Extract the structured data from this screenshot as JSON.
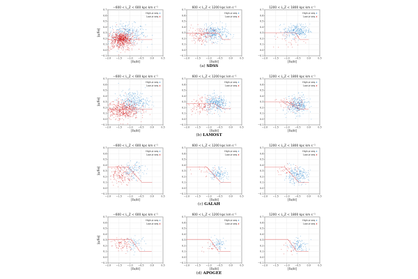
{
  "chart_data": [
    {
      "type": "scatter",
      "subfigure": "(a)",
      "survey": "SDSS",
      "xlabel": "[Fe/H]",
      "ylabel": "[α/Fe]",
      "xlim": [
        -2.0,
        0.5
      ],
      "ylim": [
        -0.1,
        0.7
      ],
      "xticks": [
        "−2.0",
        "−1.5",
        "−1.0",
        "−0.5",
        "0.0",
        "0.5"
      ],
      "yticks": [
        "−0.1",
        "0.0",
        "0.1",
        "0.2",
        "0.3",
        "0.4",
        "0.5",
        "0.6",
        "0.7"
      ],
      "grid": true,
      "legend": "top-right",
      "series_labels": [
        "High-α seq.",
        "Low-α seq."
      ],
      "colors": {
        "high": "#3a8fd1",
        "low": "#d62020",
        "line": "#d62020"
      },
      "panels": [
        {
          "title": "−600 < L_Z < 600 kpc km s⁻¹",
          "clusters": [
            {
              "series": "high",
              "n": 330,
              "cx": -1.15,
              "cy": 0.28,
              "sx": 0.42,
              "sy": 0.09
            },
            {
              "series": "low",
              "n": 460,
              "cx": -1.45,
              "cy": 0.16,
              "sx": 0.36,
              "sy": 0.085
            },
            {
              "series": "low",
              "n": 260,
              "cx": -1.35,
              "cy": 0.2,
              "sx": 0.14,
              "sy": 0.04
            }
          ],
          "boundary": [
            [
              -2.0,
              0.18
            ],
            [
              0.0,
              0.18
            ]
          ]
        },
        {
          "title": "600 < L_Z < 1200 kpc km s⁻¹",
          "clusters": [
            {
              "series": "high",
              "n": 320,
              "cx": -0.75,
              "cy": 0.29,
              "sx": 0.32,
              "sy": 0.07
            },
            {
              "series": "low",
              "n": 130,
              "cx": -1.35,
              "cy": 0.26,
              "sx": 0.3,
              "sy": 0.07
            }
          ],
          "boundary": [
            [
              -2.0,
              0.29
            ],
            [
              -0.55,
              0.29
            ],
            [
              -0.35,
              0.18
            ],
            [
              0.0,
              0.18
            ]
          ]
        },
        {
          "title": "1200 < L_Z < 1800 kpc km s⁻¹",
          "clusters": [
            {
              "series": "high",
              "n": 280,
              "cx": -0.55,
              "cy": 0.33,
              "sx": 0.3,
              "sy": 0.06
            },
            {
              "series": "low",
              "n": 35,
              "cx": -0.85,
              "cy": 0.18,
              "sx": 0.4,
              "sy": 0.08
            }
          ],
          "boundary": [
            [
              -2.0,
              0.3
            ],
            [
              -0.6,
              0.3
            ],
            [
              -0.4,
              0.18
            ],
            [
              0.0,
              0.18
            ]
          ]
        }
      ]
    },
    {
      "type": "scatter",
      "subfigure": "(b)",
      "survey": "LAMOST",
      "xlabel": "[Fe/H]",
      "ylabel": "[α/Fe]",
      "xlim": [
        -2.0,
        0.5
      ],
      "ylim": [
        -0.1,
        0.7
      ],
      "xticks": [
        "−2.0",
        "−1.5",
        "−1.0",
        "−0.5",
        "0.0",
        "0.5"
      ],
      "yticks": [
        "−0.1",
        "0.0",
        "0.1",
        "0.2",
        "0.3",
        "0.4",
        "0.5",
        "0.6",
        "0.7"
      ],
      "grid": true,
      "legend": "top-right",
      "series_labels": [
        "High-α seq.",
        "Low-α seq."
      ],
      "colors": {
        "high": "#3a8fd1",
        "low": "#d62020",
        "line": "#d62020"
      },
      "panels": [
        {
          "title": "−600 < L_Z < 600 kpc km s⁻¹",
          "clusters": [
            {
              "series": "high",
              "n": 320,
              "cx": -0.85,
              "cy": 0.3,
              "sx": 0.34,
              "sy": 0.09
            },
            {
              "series": "low",
              "n": 520,
              "cx": -1.35,
              "cy": 0.16,
              "sx": 0.38,
              "sy": 0.08
            }
          ],
          "boundary": [
            [
              -2.0,
              0.17
            ],
            [
              0.0,
              0.17
            ]
          ]
        },
        {
          "title": "600 < L_Z < 1200 kpc km s⁻¹",
          "clusters": [
            {
              "series": "high",
              "n": 320,
              "cx": -0.65,
              "cy": 0.27,
              "sx": 0.26,
              "sy": 0.07
            },
            {
              "series": "low",
              "n": 120,
              "cx": -1.3,
              "cy": 0.24,
              "sx": 0.32,
              "sy": 0.07
            }
          ],
          "boundary": [
            [
              -2.0,
              0.27
            ],
            [
              -0.75,
              0.27
            ],
            [
              -0.35,
              0.18
            ],
            [
              0.0,
              0.18
            ]
          ]
        },
        {
          "title": "1200 < L_Z < 1800 kpc km s⁻¹",
          "clusters": [
            {
              "series": "high",
              "n": 330,
              "cx": -0.5,
              "cy": 0.24,
              "sx": 0.24,
              "sy": 0.08
            },
            {
              "series": "low",
              "n": 80,
              "cx": -0.85,
              "cy": 0.26,
              "sx": 0.3,
              "sy": 0.06
            }
          ],
          "boundary": [
            [
              -2.0,
              0.3
            ],
            [
              -1.0,
              0.3
            ],
            [
              -0.4,
              0.17
            ],
            [
              0.0,
              0.17
            ]
          ]
        }
      ]
    },
    {
      "type": "scatter",
      "subfigure": "(c)",
      "survey": "GALAH",
      "xlabel": "[Fe/H]",
      "ylabel": "[α/Fe]",
      "xlim": [
        -2.0,
        0.5
      ],
      "ylim": [
        -0.1,
        0.7
      ],
      "xticks": [
        "−2.0",
        "−1.5",
        "−1.0",
        "−0.5",
        "0.0",
        "0.5"
      ],
      "yticks": [
        "−0.1",
        "0.0",
        "0.1",
        "0.2",
        "0.3",
        "0.4",
        "0.5",
        "0.6",
        "0.7"
      ],
      "grid": true,
      "legend": "top-right",
      "series_labels": [
        "High-α seq.",
        "Low-α seq."
      ],
      "colors": {
        "high": "#3a8fd1",
        "low": "#d62020",
        "line": "#d62020"
      },
      "panels": [
        {
          "title": "−600 < L_Z < 600 kpc km s⁻¹",
          "clusters": [
            {
              "series": "high",
              "n": 120,
              "cx": -0.85,
              "cy": 0.3,
              "sx": 0.25,
              "sy": 0.07
            },
            {
              "series": "low",
              "n": 170,
              "cx": -1.35,
              "cy": 0.24,
              "sx": 0.3,
              "sy": 0.08
            }
          ],
          "boundary": [
            [
              -2.0,
              0.37
            ],
            [
              -1.1,
              0.37
            ],
            [
              -0.45,
              0.1
            ],
            [
              0.0,
              0.1
            ]
          ]
        },
        {
          "title": "600 < L_Z < 1200 kpc km s⁻¹",
          "clusters": [
            {
              "series": "high",
              "n": 130,
              "cx": -0.55,
              "cy": 0.25,
              "sx": 0.2,
              "sy": 0.06
            },
            {
              "series": "low",
              "n": 25,
              "cx": -1.1,
              "cy": 0.3,
              "sx": 0.3,
              "sy": 0.06
            }
          ],
          "boundary": [
            [
              -2.0,
              0.37
            ],
            [
              -1.1,
              0.37
            ],
            [
              -0.45,
              0.1
            ],
            [
              0.0,
              0.1
            ]
          ]
        },
        {
          "title": "1200 < L_Z < 1800 kpc km s⁻¹",
          "clusters": [
            {
              "series": "high",
              "n": 230,
              "cx": -0.55,
              "cy": 0.22,
              "sx": 0.26,
              "sy": 0.07
            },
            {
              "series": "low",
              "n": 35,
              "cx": -1.0,
              "cy": 0.3,
              "sx": 0.3,
              "sy": 0.06
            }
          ],
          "boundary": [
            [
              -2.0,
              0.37
            ],
            [
              -1.1,
              0.37
            ],
            [
              -0.45,
              0.1
            ],
            [
              0.0,
              0.1
            ]
          ]
        }
      ]
    },
    {
      "type": "scatter",
      "subfigure": "(d)",
      "survey": "APOGEE",
      "xlabel": "[Fe/H]",
      "ylabel": "[α/Fe]",
      "xlim": [
        -2.0,
        0.5
      ],
      "ylim": [
        -0.1,
        0.7
      ],
      "xticks": [
        "−2.0",
        "−1.5",
        "−1.0",
        "−0.5",
        "0.0",
        "0.5"
      ],
      "yticks": [
        "−0.1",
        "0.0",
        "0.1",
        "0.2",
        "0.3",
        "0.4",
        "0.5",
        "0.6",
        "0.7"
      ],
      "grid": true,
      "legend": "top-right",
      "series_labels": [
        "High-α seq.",
        "Low-α seq."
      ],
      "colors": {
        "high": "#3a8fd1",
        "low": "#d62020",
        "line": "#d62020"
      },
      "panels": [
        {
          "title": "−600 < L_Z < 600 kpc km s⁻¹",
          "clusters": [
            {
              "series": "high",
              "n": 60,
              "cx": -0.75,
              "cy": 0.24,
              "sx": 0.22,
              "sy": 0.06
            },
            {
              "series": "low",
              "n": 90,
              "cx": -1.3,
              "cy": 0.22,
              "sx": 0.3,
              "sy": 0.06
            }
          ],
          "boundary": [
            [
              -2.0,
              0.31
            ],
            [
              -0.95,
              0.31
            ],
            [
              -0.55,
              0.1
            ],
            [
              0.0,
              0.1
            ]
          ]
        },
        {
          "title": "600 < L_Z < 1200 kpc km s⁻¹",
          "clusters": [
            {
              "series": "high",
              "n": 70,
              "cx": -0.55,
              "cy": 0.24,
              "sx": 0.16,
              "sy": 0.05
            },
            {
              "series": "low",
              "n": 20,
              "cx": -0.9,
              "cy": 0.18,
              "sx": 0.25,
              "sy": 0.05
            }
          ],
          "boundary": [
            [
              -2.0,
              0.31
            ],
            [
              -0.95,
              0.31
            ],
            [
              -0.55,
              0.1
            ],
            [
              0.0,
              0.1
            ]
          ]
        },
        {
          "title": "1200 < L_Z < 1800 kpc km s⁻¹",
          "clusters": [
            {
              "series": "high",
              "n": 110,
              "cx": -0.45,
              "cy": 0.2,
              "sx": 0.22,
              "sy": 0.06
            },
            {
              "series": "low",
              "n": 20,
              "cx": -0.8,
              "cy": 0.15,
              "sx": 0.25,
              "sy": 0.05
            }
          ],
          "boundary": [
            [
              -2.0,
              0.31
            ],
            [
              -0.95,
              0.31
            ],
            [
              -0.55,
              0.1
            ],
            [
              0.0,
              0.1
            ]
          ]
        }
      ]
    }
  ]
}
